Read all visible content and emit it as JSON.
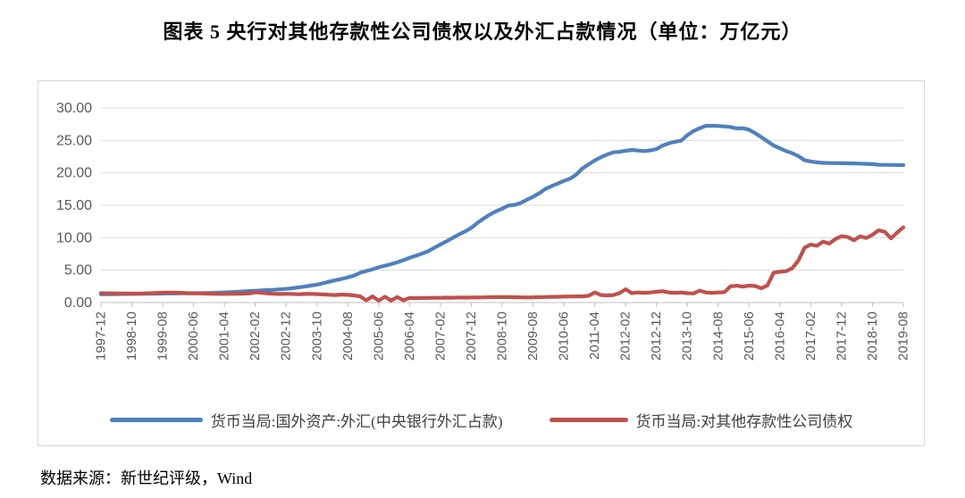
{
  "title": "图表 5  央行对其他存款性公司债权以及外汇占款情况（单位：万亿元）",
  "source": "数据来源：新世纪评级，Wind",
  "chart_data": {
    "type": "line",
    "unit": "万亿元",
    "grid": "horizontal",
    "legend_position": "bottom",
    "ylim": [
      0,
      30
    ],
    "y_ticks": [
      0,
      5,
      10,
      15,
      20,
      25,
      30
    ],
    "y_tick_labels": [
      "0.00",
      "5.00",
      "10.00",
      "15.00",
      "20.00",
      "25.00",
      "30.00"
    ],
    "x_tick_labels": [
      "1997-12",
      "1998-10",
      "1999-08",
      "2000-06",
      "2001-04",
      "2002-02",
      "2002-12",
      "2003-10",
      "2004-08",
      "2005-06",
      "2006-04",
      "2007-02",
      "2007-12",
      "2008-10",
      "2009-08",
      "2010-06",
      "2011-04",
      "2012-02",
      "2012-12",
      "2013-10",
      "2014-08",
      "2015-06",
      "2016-04",
      "2017-02",
      "2017-12",
      "2018-10",
      "2019-08"
    ],
    "colors": {
      "grid": "#d9d9d9",
      "axis": "#bfbfbf",
      "tick_label": "#595959"
    },
    "x": [
      "1997-12",
      "1998-02",
      "1998-04",
      "1998-06",
      "1998-08",
      "1998-10",
      "1998-12",
      "1999-02",
      "1999-04",
      "1999-06",
      "1999-08",
      "1999-10",
      "1999-12",
      "2000-02",
      "2000-04",
      "2000-06",
      "2000-08",
      "2000-10",
      "2000-12",
      "2001-02",
      "2001-04",
      "2001-06",
      "2001-08",
      "2001-10",
      "2001-12",
      "2002-02",
      "2002-04",
      "2002-06",
      "2002-08",
      "2002-10",
      "2002-12",
      "2003-02",
      "2003-04",
      "2003-06",
      "2003-08",
      "2003-10",
      "2003-12",
      "2004-02",
      "2004-04",
      "2004-06",
      "2004-08",
      "2004-10",
      "2004-12",
      "2005-02",
      "2005-04",
      "2005-06",
      "2005-08",
      "2005-10",
      "2005-12",
      "2006-02",
      "2006-04",
      "2006-06",
      "2006-08",
      "2006-10",
      "2006-12",
      "2007-02",
      "2007-04",
      "2007-06",
      "2007-08",
      "2007-10",
      "2007-12",
      "2008-02",
      "2008-04",
      "2008-06",
      "2008-08",
      "2008-10",
      "2008-12",
      "2009-02",
      "2009-04",
      "2009-06",
      "2009-08",
      "2009-10",
      "2009-12",
      "2010-02",
      "2010-04",
      "2010-06",
      "2010-08",
      "2010-10",
      "2010-12",
      "2011-02",
      "2011-04",
      "2011-06",
      "2011-08",
      "2011-10",
      "2011-12",
      "2012-02",
      "2012-04",
      "2012-06",
      "2012-08",
      "2012-10",
      "2012-12",
      "2013-02",
      "2013-04",
      "2013-06",
      "2013-08",
      "2013-10",
      "2013-12",
      "2014-02",
      "2014-04",
      "2014-06",
      "2014-08",
      "2014-10",
      "2014-12",
      "2015-02",
      "2015-04",
      "2015-06",
      "2015-08",
      "2015-10",
      "2015-12",
      "2016-02",
      "2016-04",
      "2016-06",
      "2016-08",
      "2016-10",
      "2016-12",
      "2017-02",
      "2017-04",
      "2017-06",
      "2017-08",
      "2017-10",
      "2017-12",
      "2018-02",
      "2018-04",
      "2018-06",
      "2018-08",
      "2018-10",
      "2018-12",
      "2019-02",
      "2019-04",
      "2019-06",
      "2019-08"
    ],
    "series": [
      {
        "name": "货币当局:国外资产:外汇(中央银行外汇占款)",
        "color": "#4F81BD",
        "values": [
          1.28,
          1.29,
          1.3,
          1.31,
          1.32,
          1.33,
          1.34,
          1.35,
          1.36,
          1.38,
          1.39,
          1.4,
          1.41,
          1.42,
          1.43,
          1.44,
          1.45,
          1.47,
          1.49,
          1.52,
          1.56,
          1.6,
          1.65,
          1.7,
          1.77,
          1.82,
          1.87,
          1.92,
          1.97,
          2.03,
          2.11,
          2.2,
          2.32,
          2.46,
          2.61,
          2.77,
          2.98,
          3.22,
          3.45,
          3.65,
          3.88,
          4.16,
          4.59,
          4.87,
          5.12,
          5.43,
          5.68,
          5.92,
          6.21,
          6.54,
          6.89,
          7.21,
          7.56,
          7.91,
          8.44,
          8.96,
          9.45,
          9.98,
          10.48,
          10.97,
          11.52,
          12.29,
          12.95,
          13.57,
          14.07,
          14.48,
          14.96,
          15.05,
          15.35,
          15.85,
          16.3,
          16.85,
          17.52,
          17.95,
          18.35,
          18.76,
          19.1,
          19.73,
          20.68,
          21.3,
          21.92,
          22.4,
          22.82,
          23.16,
          23.24,
          23.4,
          23.53,
          23.44,
          23.36,
          23.46,
          23.67,
          24.2,
          24.55,
          24.8,
          24.95,
          25.8,
          26.43,
          26.87,
          27.25,
          27.28,
          27.22,
          27.15,
          27.07,
          26.85,
          26.87,
          26.66,
          26.1,
          25.48,
          24.85,
          24.2,
          23.78,
          23.36,
          23.02,
          22.58,
          21.94,
          21.75,
          21.62,
          21.54,
          21.51,
          21.49,
          21.48,
          21.47,
          21.45,
          21.42,
          21.38,
          21.35,
          21.25,
          21.23,
          21.22,
          21.2,
          21.19
        ]
      },
      {
        "name": "货币当局:对其他存款性公司债权",
        "color": "#C0504D",
        "values": [
          1.44,
          1.43,
          1.42,
          1.41,
          1.39,
          1.38,
          1.37,
          1.4,
          1.44,
          1.49,
          1.52,
          1.54,
          1.54,
          1.5,
          1.45,
          1.42,
          1.4,
          1.38,
          1.35,
          1.34,
          1.34,
          1.35,
          1.36,
          1.38,
          1.4,
          1.58,
          1.48,
          1.4,
          1.35,
          1.32,
          1.35,
          1.32,
          1.28,
          1.32,
          1.35,
          1.3,
          1.25,
          1.2,
          1.15,
          1.22,
          1.18,
          1.1,
          0.95,
          0.35,
          0.95,
          0.3,
          0.9,
          0.3,
          0.85,
          0.35,
          0.72,
          0.68,
          0.7,
          0.72,
          0.75,
          0.73,
          0.76,
          0.74,
          0.78,
          0.76,
          0.79,
          0.78,
          0.8,
          0.82,
          0.84,
          0.86,
          0.84,
          0.82,
          0.8,
          0.78,
          0.8,
          0.82,
          0.86,
          0.88,
          0.9,
          0.92,
          0.94,
          0.95,
          0.95,
          1.05,
          1.55,
          1.15,
          1.1,
          1.15,
          1.45,
          2.05,
          1.45,
          1.55,
          1.5,
          1.55,
          1.67,
          1.75,
          1.55,
          1.5,
          1.55,
          1.45,
          1.4,
          1.85,
          1.55,
          1.5,
          1.55,
          1.6,
          2.5,
          2.6,
          2.45,
          2.62,
          2.55,
          2.2,
          2.66,
          4.6,
          4.75,
          4.85,
          5.3,
          6.5,
          8.47,
          8.95,
          8.75,
          9.4,
          9.1,
          9.8,
          10.22,
          10.1,
          9.6,
          10.2,
          9.95,
          10.45,
          11.15,
          10.9,
          9.9,
          10.8,
          11.6
        ]
      }
    ]
  }
}
